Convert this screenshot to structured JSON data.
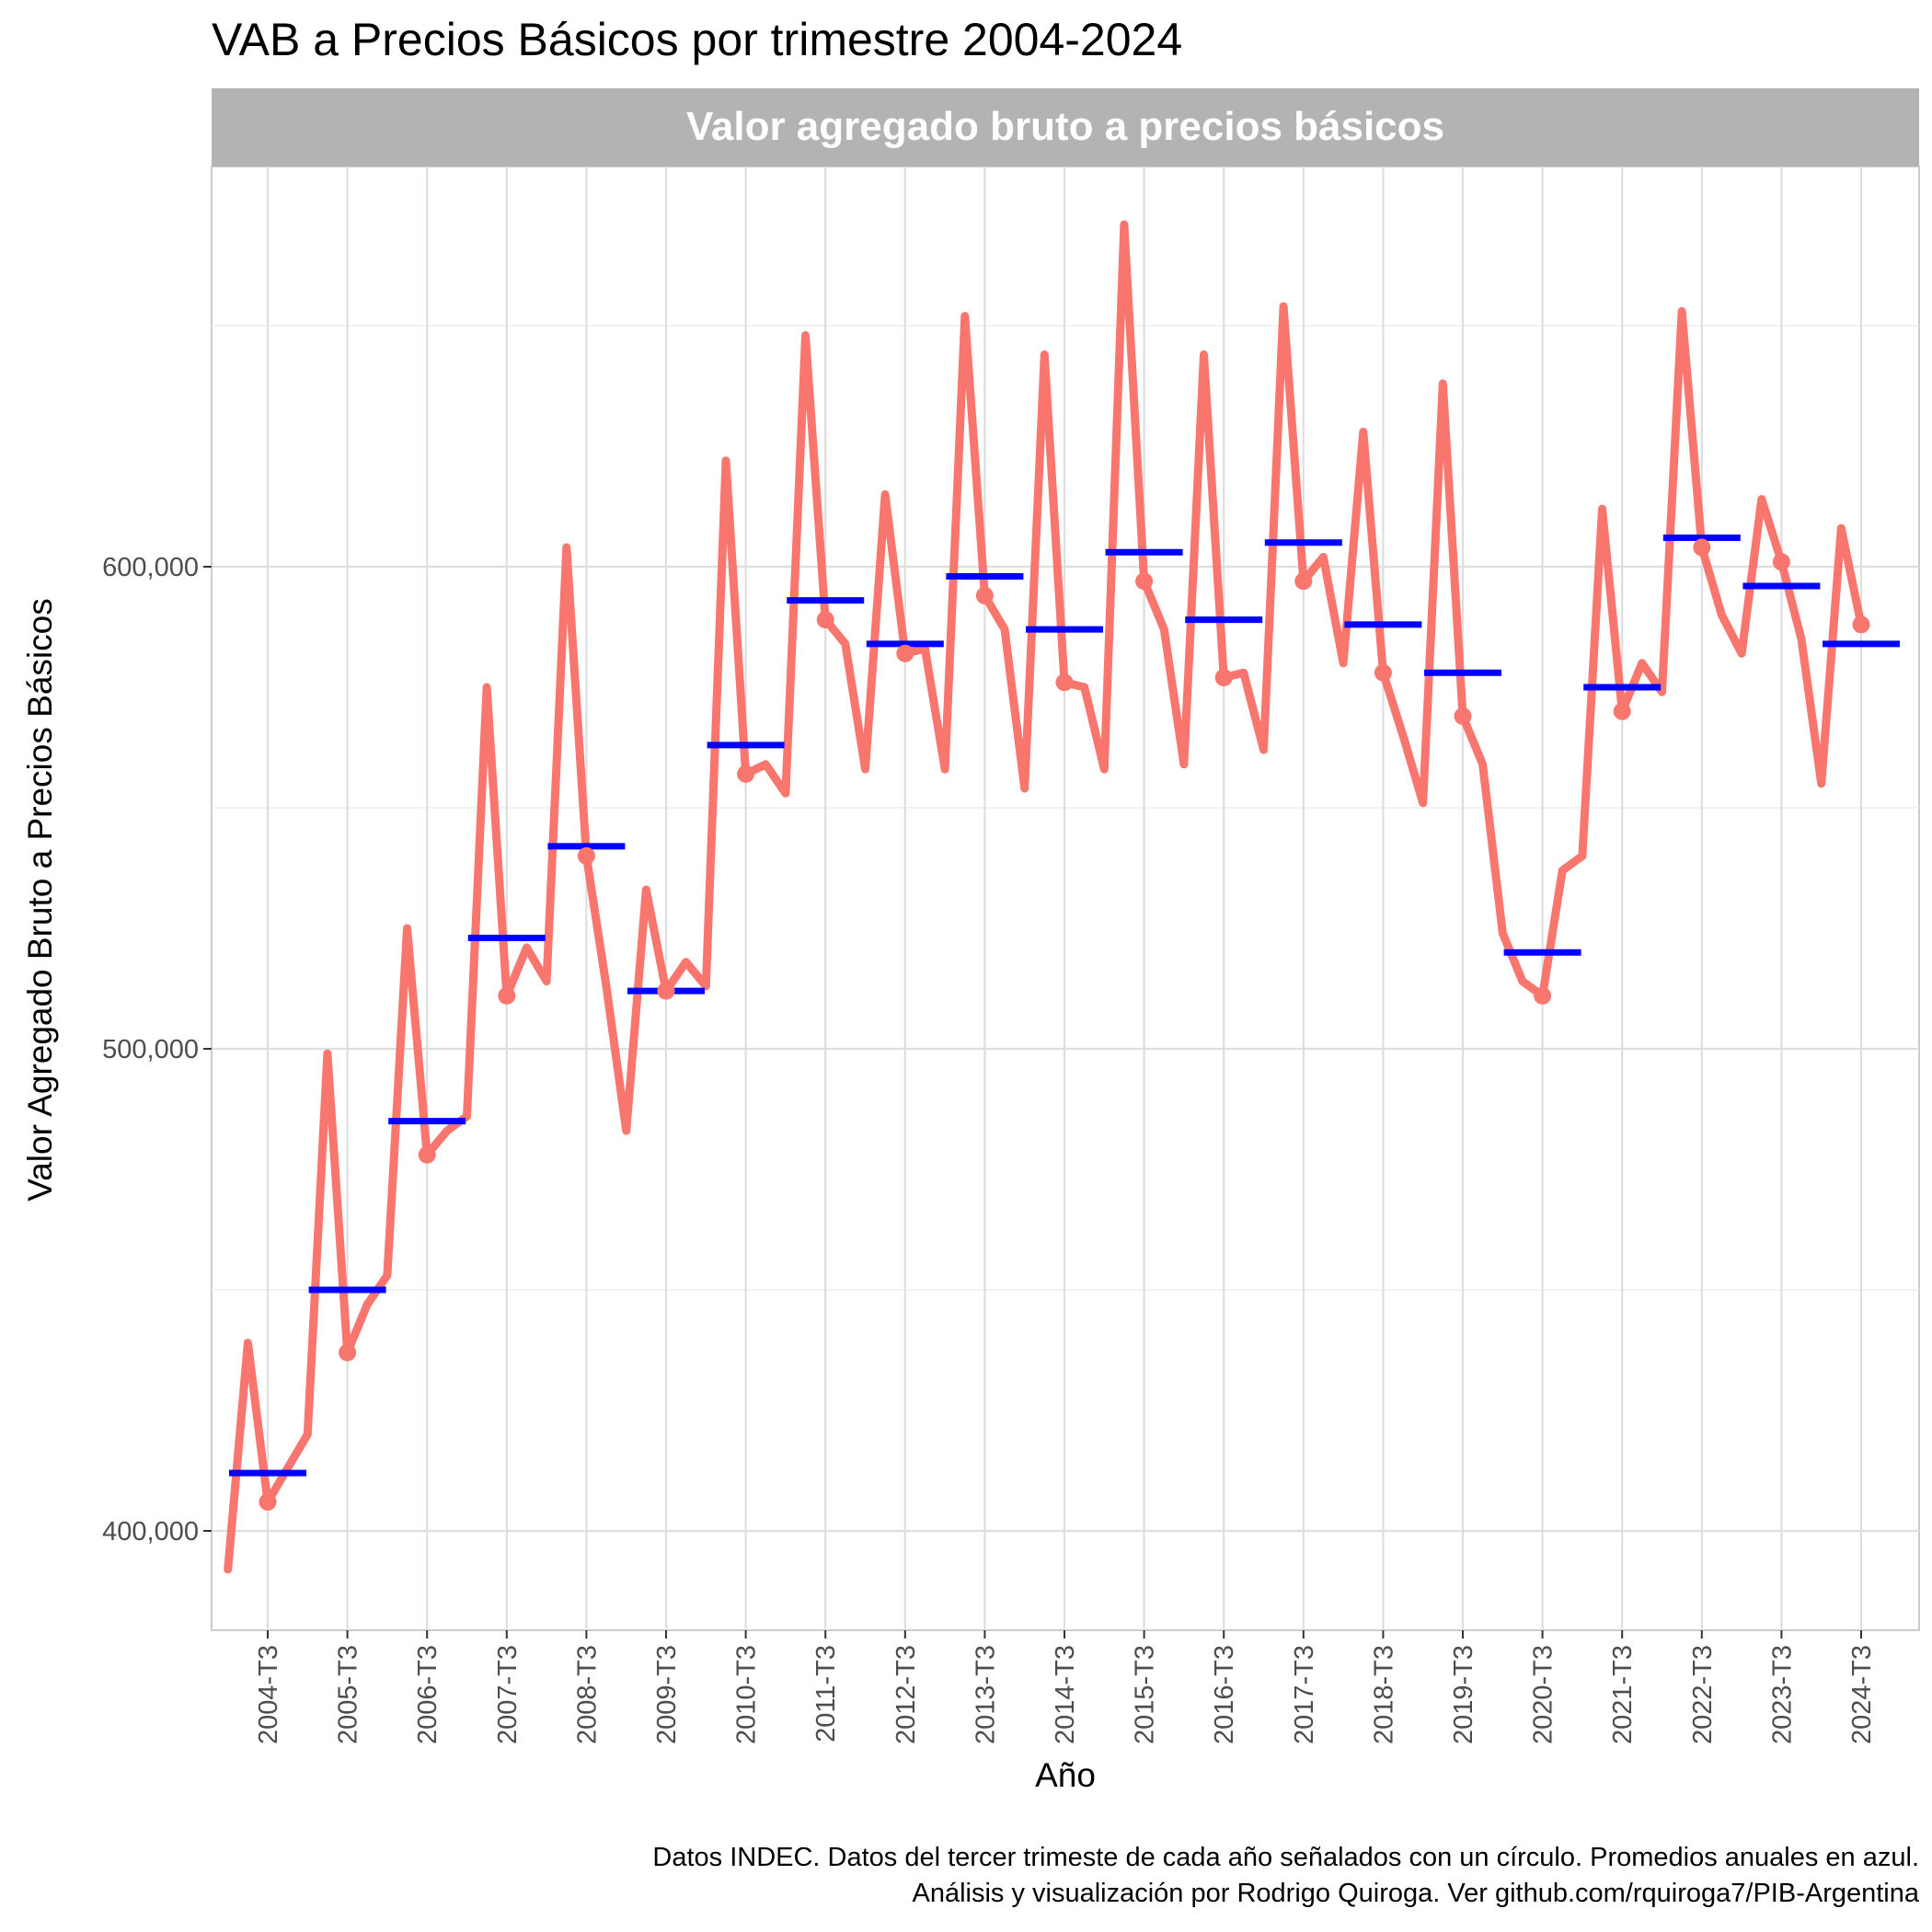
{
  "title": "VAB a Precios Básicos por trimestre 2004-2024",
  "caption": [
    "Datos INDEC. Datos del tercer trimeste de cada año señalados con un círculo. Promedios anuales en azul.",
    "Análisis y visualización por Rodrigo Quiroga. Ver github.com/rquiroga7/PIB-Argentina"
  ],
  "chart_data": {
    "type": "line",
    "facet_label": "Valor agregado bruto a precios básicos",
    "xlabel": "Año",
    "ylabel": "Valor Agregado Bruto a Precios Básicos",
    "ylim": [
      377000,
      682000
    ],
    "yticks": [
      400000,
      500000,
      600000
    ],
    "ytick_labels": [
      "400,000",
      "500,000",
      "600,000"
    ],
    "grid": true,
    "x_tick_labels": [
      "2004-T3",
      "2005-T3",
      "2006-T3",
      "2007-T3",
      "2008-T3",
      "2009-T3",
      "2010-T3",
      "2011-T3",
      "2012-T3",
      "2013-T3",
      "2014-T3",
      "2015-T3",
      "2016-T3",
      "2017-T3",
      "2018-T3",
      "2019-T3",
      "2020-T3",
      "2021-T3",
      "2022-T3",
      "2023-T3",
      "2024-T3"
    ],
    "colors": {
      "quarterly": "#F8766D",
      "annual_mean": "#0000FF"
    },
    "series": [
      {
        "start_year": 2004,
        "start_quarter": 1,
        "values": [
          392000,
          439000,
          406000,
          413000,
          420000,
          499000,
          437000,
          447000,
          453000,
          525000,
          478000,
          483000,
          486000,
          575000,
          511000,
          521000,
          514000,
          604000,
          540000,
          513000,
          483000,
          533000,
          512000,
          518000,
          513000,
          622000,
          557000,
          559000,
          553000,
          648000,
          589000,
          584000,
          558000,
          615000,
          582000,
          583000,
          558000,
          652000,
          594000,
          587000,
          554000,
          644000,
          576000,
          575000,
          558000,
          671000,
          597000,
          587000,
          559000,
          644000,
          577000,
          578000,
          562000,
          654000,
          597000,
          602000,
          580000,
          628000,
          578000,
          565000,
          551000,
          638000,
          569000,
          559000,
          524000,
          514000,
          511000,
          537000,
          540000,
          612000,
          570000,
          580000,
          574000,
          653000,
          604000,
          590000,
          582000,
          614000,
          601000,
          585000,
          555000,
          608000,
          588000
        ]
      },
      {
        "name_hidden": true,
        "values_by_year": [
          412000,
          450000,
          485000,
          523000,
          542000,
          512000,
          563000,
          593000,
          584000,
          598000,
          587000,
          603000,
          589000,
          605000,
          588000,
          578000,
          520000,
          575000,
          606000,
          596000,
          584000
        ]
      }
    ]
  }
}
